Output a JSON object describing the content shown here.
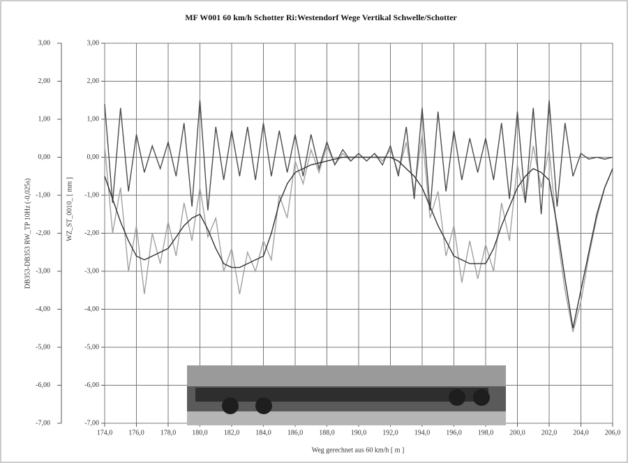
{
  "chart_data": {
    "type": "line",
    "title": "MF W001 60 km/h Schotter Ri:Westendorf Wege Vertikal Schwelle/Schotter",
    "xlabel": "Weg gerechnet aus 60 km/h [ m ]",
    "ylabel": "DB353-DB353 RW_TP 10Hz (-0,025s)",
    "y2label": "WZ_ST_0010_ [ mm ]",
    "grid": true,
    "xlim": [
      174,
      206
    ],
    "xticks": [
      {
        "value": 174,
        "label": "174,0"
      },
      {
        "value": 176,
        "label": "176,0"
      },
      {
        "value": 178,
        "label": "178,0"
      },
      {
        "value": 180,
        "label": "180,0"
      },
      {
        "value": 182,
        "label": "182,0"
      },
      {
        "value": 184,
        "label": "184,0"
      },
      {
        "value": 186,
        "label": "186,0"
      },
      {
        "value": 188,
        "label": "188,0"
      },
      {
        "value": 190,
        "label": "190,0"
      },
      {
        "value": 192,
        "label": "192,0"
      },
      {
        "value": 194,
        "label": "194,0"
      },
      {
        "value": 196,
        "label": "196,0"
      },
      {
        "value": 198,
        "label": "198,0"
      },
      {
        "value": 200,
        "label": "200,0"
      },
      {
        "value": 202,
        "label": "202,0"
      },
      {
        "value": 204,
        "label": "204,0"
      },
      {
        "value": 206,
        "label": "206,0"
      }
    ],
    "ylim": [
      -7,
      3
    ],
    "yticks": [
      {
        "value": 3,
        "label": "3,00"
      },
      {
        "value": 2,
        "label": "2,00"
      },
      {
        "value": 1,
        "label": "1,00"
      },
      {
        "value": 0,
        "label": "0,00"
      },
      {
        "value": -1,
        "label": "-1,00"
      },
      {
        "value": -2,
        "label": "-2,00"
      },
      {
        "value": -3,
        "label": "-3,00"
      },
      {
        "value": -4,
        "label": "-4,00"
      },
      {
        "value": -5,
        "label": "-5,00"
      },
      {
        "value": -6,
        "label": "-6,00"
      },
      {
        "value": -7,
        "label": "-7,00"
      }
    ],
    "y2lim": [
      -7,
      3
    ],
    "y2ticks": [
      {
        "value": 3,
        "label": "3,00"
      },
      {
        "value": 2,
        "label": "2,00"
      },
      {
        "value": 1,
        "label": "1,00"
      },
      {
        "value": 0,
        "label": "0,00"
      },
      {
        "value": -1,
        "label": "-1,00"
      },
      {
        "value": -2,
        "label": "-2,00"
      },
      {
        "value": -3,
        "label": "-3,00"
      },
      {
        "value": -4,
        "label": "-4,00"
      },
      {
        "value": -5,
        "label": "-5,00"
      },
      {
        "value": -6,
        "label": "-6,00"
      },
      {
        "value": -7,
        "label": "-7,00"
      }
    ],
    "x": [
      174,
      174.5,
      175,
      175.5,
      176,
      176.5,
      177,
      177.5,
      178,
      178.5,
      179,
      179.5,
      180,
      180.5,
      181,
      181.5,
      182,
      182.5,
      183,
      183.5,
      184,
      184.5,
      185,
      185.5,
      186,
      186.5,
      187,
      187.5,
      188,
      188.5,
      189,
      189.5,
      190,
      190.5,
      191,
      191.5,
      192,
      192.5,
      193,
      193.5,
      194,
      194.5,
      195,
      195.5,
      196,
      196.5,
      197,
      197.5,
      198,
      198.5,
      199,
      199.5,
      200,
      200.5,
      201,
      201.5,
      202,
      202.5,
      203,
      203.5,
      204,
      204.5,
      205,
      205.5,
      206
    ],
    "series": [
      {
        "color": "#a0a0a0",
        "values": [
          0.3,
          -2.0,
          -0.8,
          -3.0,
          -1.8,
          -3.6,
          -2.0,
          -2.8,
          -1.7,
          -2.6,
          -1.2,
          -2.2,
          -0.8,
          -2.1,
          -1.6,
          -3.0,
          -2.4,
          -3.6,
          -2.5,
          -3.0,
          -2.2,
          -2.7,
          -1.0,
          -1.6,
          -0.1,
          -0.7,
          0.2,
          -0.4,
          0.3,
          -0.2,
          0.1,
          -0.1,
          0.1,
          -0.1,
          0.1,
          -0.1,
          0.2,
          -0.4,
          0.4,
          -0.9,
          0.6,
          -1.6,
          -0.9,
          -2.6,
          -1.8,
          -3.3,
          -2.2,
          -3.2,
          -2.3,
          -3.0,
          -1.2,
          -2.2,
          -0.2,
          -1.2,
          0.3,
          -0.8,
          0.2,
          -2.0,
          -3.5,
          -4.6,
          -3.8,
          -2.6,
          -1.6,
          -0.8,
          -0.3
        ]
      },
      {
        "color": "#4a4a4a",
        "values": [
          1.4,
          -1.2,
          1.3,
          -0.9,
          0.6,
          -0.4,
          0.3,
          -0.3,
          0.4,
          -0.5,
          0.9,
          -1.3,
          1.5,
          -1.4,
          0.8,
          -0.6,
          0.7,
          -0.5,
          0.8,
          -0.6,
          0.9,
          -0.5,
          0.7,
          -0.4,
          0.6,
          -0.5,
          0.6,
          -0.3,
          0.4,
          -0.2,
          0.2,
          -0.1,
          0.1,
          -0.1,
          0.1,
          -0.2,
          0.3,
          -0.5,
          0.8,
          -1.1,
          1.3,
          -1.4,
          1.2,
          -0.9,
          0.7,
          -0.6,
          0.5,
          -0.4,
          0.5,
          -0.6,
          0.9,
          -1.1,
          1.2,
          -1.2,
          1.3,
          -1.5,
          1.5,
          -1.3,
          0.9,
          -0.5,
          0.1,
          -0.05,
          0,
          -0.05,
          0
        ]
      },
      {
        "color": "#303030",
        "values": [
          -0.5,
          -1.1,
          -1.7,
          -2.2,
          -2.6,
          -2.7,
          -2.6,
          -2.5,
          -2.4,
          -2.1,
          -1.8,
          -1.6,
          -1.5,
          -1.9,
          -2.4,
          -2.8,
          -2.9,
          -2.9,
          -2.8,
          -2.7,
          -2.6,
          -2.0,
          -1.2,
          -0.7,
          -0.4,
          -0.3,
          -0.2,
          -0.15,
          -0.1,
          -0.05,
          0,
          0,
          0,
          0,
          0,
          0,
          0,
          -0.1,
          -0.3,
          -0.5,
          -0.8,
          -1.3,
          -1.8,
          -2.2,
          -2.6,
          -2.7,
          -2.8,
          -2.8,
          -2.8,
          -2.4,
          -1.8,
          -1.3,
          -0.8,
          -0.5,
          -0.3,
          -0.4,
          -0.6,
          -1.8,
          -3.2,
          -4.5,
          -3.5,
          -2.5,
          -1.5,
          -0.8,
          -0.3
        ]
      }
    ]
  }
}
